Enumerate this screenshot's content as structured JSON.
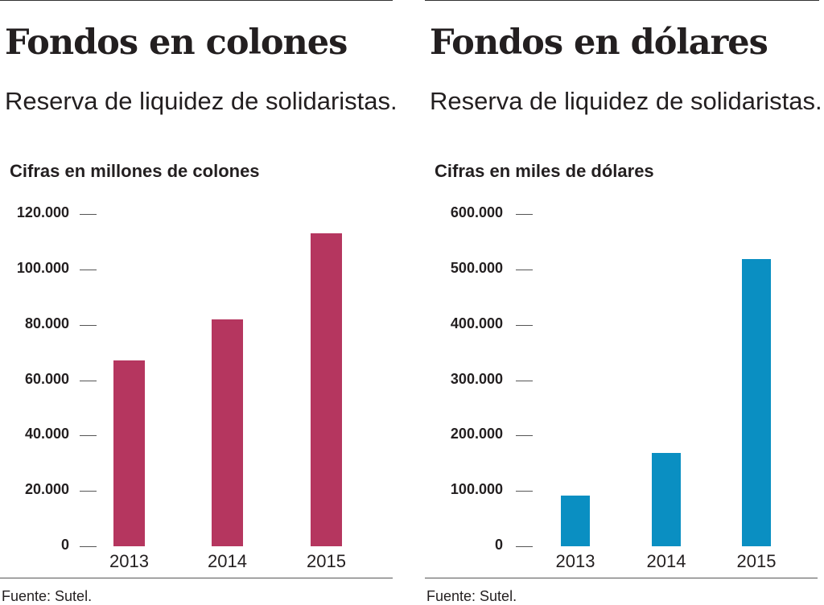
{
  "chart_data": [
    {
      "type": "bar",
      "title": "Fondos en colones",
      "subtitle": "Reserva de liquidez de solidaristas.",
      "ylabel": "Cifras en millones de colones",
      "xlabel": "",
      "categories": [
        "2013",
        "2014",
        "2015"
      ],
      "values": [
        67000,
        82000,
        113000
      ],
      "ylim": [
        0,
        120000
      ],
      "yticks": [
        0,
        20000,
        40000,
        60000,
        80000,
        100000,
        120000
      ],
      "ytick_labels": [
        "0",
        "20.000",
        "40.000",
        "60.000",
        "80.000",
        "100.000",
        "120.000"
      ],
      "color": "#b5365f",
      "source": "Fuente: Sutel.",
      "grid": false
    },
    {
      "type": "bar",
      "title": "Fondos en dólares",
      "subtitle": "Reserva de liquidez de solidaristas.",
      "ylabel": "Cifras en miles de dólares",
      "xlabel": "",
      "categories": [
        "2013",
        "2014",
        "2015"
      ],
      "values": [
        91000,
        169000,
        519000
      ],
      "ylim": [
        0,
        600000
      ],
      "yticks": [
        0,
        100000,
        200000,
        300000,
        400000,
        500000,
        600000
      ],
      "ytick_labels": [
        "0",
        "100.000",
        "200.000",
        "300.000",
        "400.000",
        "500.000",
        "600.000"
      ],
      "color": "#0a8fc2",
      "source": "Fuente: Sutel.",
      "grid": false
    }
  ]
}
